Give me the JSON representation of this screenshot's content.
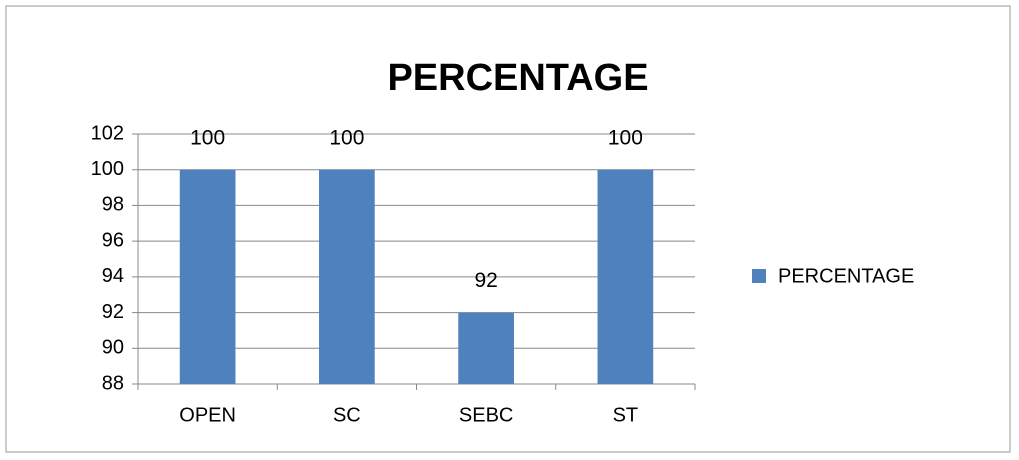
{
  "chart_data": {
    "type": "bar",
    "title": "PERCENTAGE",
    "categories": [
      "OPEN",
      "SC",
      "SEBC",
      "ST"
    ],
    "series": [
      {
        "name": "PERCENTAGE",
        "color": "#4f81bd",
        "values": [
          100,
          100,
          92,
          100
        ]
      }
    ],
    "ylim": [
      88,
      102
    ],
    "yticks": [
      88,
      90,
      92,
      94,
      96,
      98,
      100,
      102
    ],
    "grid": true,
    "legend": "right"
  }
}
